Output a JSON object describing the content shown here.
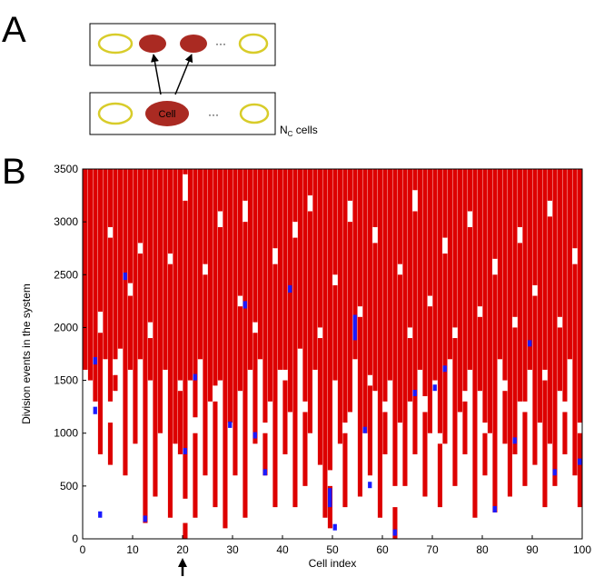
{
  "panels": {
    "a": {
      "letter": "A",
      "cell_label": "Cell",
      "ellipsis": "···",
      "count_prefix": "N",
      "count_subscript": "C",
      "count_suffix": " cells"
    },
    "b": {
      "letter": "B"
    }
  },
  "colors": {
    "division_red": "#dd0000",
    "marker_blue": "#1a1aff",
    "schema_dark_red": "#aa2a22",
    "schema_yellow": "#d8cc2a"
  },
  "chart_data": {
    "type": "raster",
    "title": "",
    "xlabel": "Cell index",
    "ylabel": "Division events in the system",
    "xlim": [
      0,
      100
    ],
    "ylim": [
      0,
      3500
    ],
    "xticks": [
      0,
      10,
      20,
      30,
      40,
      50,
      60,
      70,
      80,
      90,
      100
    ],
    "yticks": [
      0,
      500,
      1000,
      1500,
      2000,
      2500,
      3000,
      3500
    ],
    "highlighted_cell": 20,
    "n_cells": 100,
    "red_runs": [
      [
        0,
        1600,
        3500
      ],
      [
        1,
        1500,
        3500
      ],
      [
        2,
        1300,
        3500
      ],
      [
        3,
        800,
        3500
      ],
      [
        4,
        1700,
        3500
      ],
      [
        5,
        700,
        3500
      ],
      [
        6,
        1400,
        3500
      ],
      [
        7,
        1800,
        3500
      ],
      [
        8,
        600,
        3500
      ],
      [
        9,
        1600,
        3500
      ],
      [
        10,
        900,
        3500
      ],
      [
        11,
        1700,
        3500
      ],
      [
        12,
        150,
        3500
      ],
      [
        13,
        1500,
        3500
      ],
      [
        14,
        400,
        3500
      ],
      [
        15,
        1000,
        3500
      ],
      [
        16,
        1600,
        3500
      ],
      [
        17,
        200,
        3500
      ],
      [
        18,
        900,
        3500
      ],
      [
        19,
        800,
        3500
      ],
      [
        20,
        0,
        3500
      ],
      [
        21,
        1500,
        3500
      ],
      [
        22,
        200,
        3500
      ],
      [
        23,
        1700,
        3500
      ],
      [
        24,
        600,
        3500
      ],
      [
        25,
        1300,
        3500
      ],
      [
        26,
        300,
        3500
      ],
      [
        27,
        1500,
        3500
      ],
      [
        28,
        100,
        3500
      ],
      [
        29,
        1100,
        3500
      ],
      [
        30,
        600,
        3500
      ],
      [
        31,
        1400,
        3500
      ],
      [
        32,
        200,
        3500
      ],
      [
        33,
        1600,
        3500
      ],
      [
        34,
        900,
        3500
      ],
      [
        35,
        1700,
        3500
      ],
      [
        36,
        600,
        3500
      ],
      [
        37,
        1300,
        3500
      ],
      [
        38,
        300,
        3500
      ],
      [
        39,
        1600,
        3500
      ],
      [
        40,
        800,
        3500
      ],
      [
        41,
        1200,
        3500
      ],
      [
        42,
        300,
        3500
      ],
      [
        43,
        1800,
        3500
      ],
      [
        44,
        500,
        3500
      ],
      [
        45,
        1000,
        3500
      ],
      [
        46,
        1600,
        3500
      ],
      [
        47,
        700,
        3500
      ],
      [
        48,
        200,
        3500
      ],
      [
        49,
        100,
        3500
      ],
      [
        50,
        1500,
        3500
      ],
      [
        51,
        900,
        3500
      ],
      [
        52,
        300,
        3500
      ],
      [
        53,
        1200,
        3500
      ],
      [
        54,
        1700,
        3500
      ],
      [
        55,
        400,
        3500
      ],
      [
        56,
        1000,
        3500
      ],
      [
        57,
        600,
        3500
      ],
      [
        58,
        1400,
        3500
      ],
      [
        59,
        200,
        3500
      ],
      [
        60,
        800,
        3500
      ],
      [
        61,
        1500,
        3500
      ],
      [
        62,
        0,
        3500
      ],
      [
        63,
        1100,
        3500
      ],
      [
        64,
        500,
        3500
      ],
      [
        65,
        1300,
        3500
      ],
      [
        66,
        800,
        3500
      ],
      [
        67,
        1600,
        3500
      ],
      [
        68,
        400,
        3500
      ],
      [
        69,
        1000,
        3500
      ],
      [
        70,
        1500,
        3500
      ],
      [
        71,
        300,
        3500
      ],
      [
        72,
        900,
        3500
      ],
      [
        73,
        1700,
        3500
      ],
      [
        74,
        500,
        3500
      ],
      [
        75,
        1200,
        3500
      ],
      [
        76,
        800,
        3500
      ],
      [
        77,
        1600,
        3500
      ],
      [
        78,
        200,
        3500
      ],
      [
        79,
        1400,
        3500
      ],
      [
        80,
        600,
        3500
      ],
      [
        81,
        1000,
        3500
      ],
      [
        82,
        250,
        3500
      ],
      [
        83,
        1700,
        3500
      ],
      [
        84,
        900,
        3500
      ],
      [
        85,
        400,
        3500
      ],
      [
        86,
        800,
        3500
      ],
      [
        87,
        1300,
        3500
      ],
      [
        88,
        500,
        3500
      ],
      [
        89,
        1600,
        3500
      ],
      [
        90,
        700,
        3500
      ],
      [
        91,
        1100,
        3500
      ],
      [
        92,
        300,
        3500
      ],
      [
        93,
        900,
        3500
      ],
      [
        94,
        500,
        3500
      ],
      [
        95,
        1400,
        3500
      ],
      [
        96,
        800,
        3500
      ],
      [
        97,
        1700,
        3500
      ],
      [
        98,
        600,
        3500
      ],
      [
        99,
        300,
        3500
      ]
    ],
    "gaps": [
      [
        3,
        1950,
        2150
      ],
      [
        5,
        1100,
        1300
      ],
      [
        5,
        2850,
        2950
      ],
      [
        6,
        1550,
        1700
      ],
      [
        9,
        2300,
        2420
      ],
      [
        11,
        2700,
        2800
      ],
      [
        13,
        1900,
        2050
      ],
      [
        16,
        900,
        1050
      ],
      [
        17,
        2600,
        2700
      ],
      [
        19,
        1400,
        1500
      ],
      [
        20,
        150,
        380
      ],
      [
        20,
        3200,
        3450
      ],
      [
        22,
        1000,
        1150
      ],
      [
        24,
        2500,
        2600
      ],
      [
        26,
        1300,
        1450
      ],
      [
        27,
        2950,
        3100
      ],
      [
        29,
        600,
        750
      ],
      [
        31,
        2200,
        2300
      ],
      [
        32,
        3000,
        3200
      ],
      [
        34,
        1950,
        2050
      ],
      [
        36,
        1000,
        1100
      ],
      [
        38,
        2600,
        2750
      ],
      [
        40,
        1500,
        1600
      ],
      [
        42,
        2850,
        3000
      ],
      [
        44,
        1200,
        1300
      ],
      [
        45,
        3100,
        3250
      ],
      [
        47,
        1900,
        2000
      ],
      [
        49,
        500,
        650
      ],
      [
        50,
        2400,
        2500
      ],
      [
        52,
        1000,
        1100
      ],
      [
        53,
        3000,
        3200
      ],
      [
        55,
        2100,
        2200
      ],
      [
        57,
        1450,
        1550
      ],
      [
        58,
        2800,
        2950
      ],
      [
        60,
        1200,
        1300
      ],
      [
        62,
        300,
        500
      ],
      [
        63,
        2500,
        2600
      ],
      [
        65,
        1900,
        2000
      ],
      [
        66,
        3100,
        3300
      ],
      [
        68,
        1200,
        1350
      ],
      [
        69,
        2200,
        2300
      ],
      [
        71,
        900,
        1000
      ],
      [
        72,
        2700,
        2850
      ],
      [
        74,
        1900,
        2000
      ],
      [
        76,
        1300,
        1400
      ],
      [
        77,
        2950,
        3100
      ],
      [
        79,
        2100,
        2200
      ],
      [
        80,
        1000,
        1100
      ],
      [
        82,
        2500,
        2650
      ],
      [
        84,
        1400,
        1500
      ],
      [
        86,
        2000,
        2100
      ],
      [
        87,
        2800,
        2950
      ],
      [
        88,
        1200,
        1300
      ],
      [
        90,
        2300,
        2400
      ],
      [
        92,
        1500,
        1600
      ],
      [
        93,
        3050,
        3200
      ],
      [
        95,
        2000,
        2100
      ],
      [
        96,
        1200,
        1300
      ],
      [
        98,
        2600,
        2750
      ],
      [
        99,
        1000,
        1100
      ]
    ],
    "blue_markers": [
      [
        2,
        1650,
        1720
      ],
      [
        2,
        1180,
        1250
      ],
      [
        3,
        200,
        260
      ],
      [
        8,
        2450,
        2520
      ],
      [
        12,
        160,
        220
      ],
      [
        20,
        800,
        860
      ],
      [
        22,
        1500,
        1560
      ],
      [
        29,
        1050,
        1110
      ],
      [
        32,
        2180,
        2250
      ],
      [
        34,
        950,
        1010
      ],
      [
        36,
        600,
        660
      ],
      [
        41,
        2330,
        2400
      ],
      [
        49,
        300,
        480
      ],
      [
        50,
        80,
        140
      ],
      [
        54,
        1880,
        2120
      ],
      [
        56,
        1000,
        1060
      ],
      [
        57,
        480,
        540
      ],
      [
        62,
        30,
        90
      ],
      [
        66,
        1350,
        1410
      ],
      [
        70,
        1400,
        1460
      ],
      [
        72,
        1580,
        1640
      ],
      [
        82,
        250,
        310
      ],
      [
        86,
        900,
        960
      ],
      [
        89,
        1820,
        1880
      ],
      [
        94,
        600,
        660
      ],
      [
        99,
        700,
        760
      ]
    ]
  }
}
